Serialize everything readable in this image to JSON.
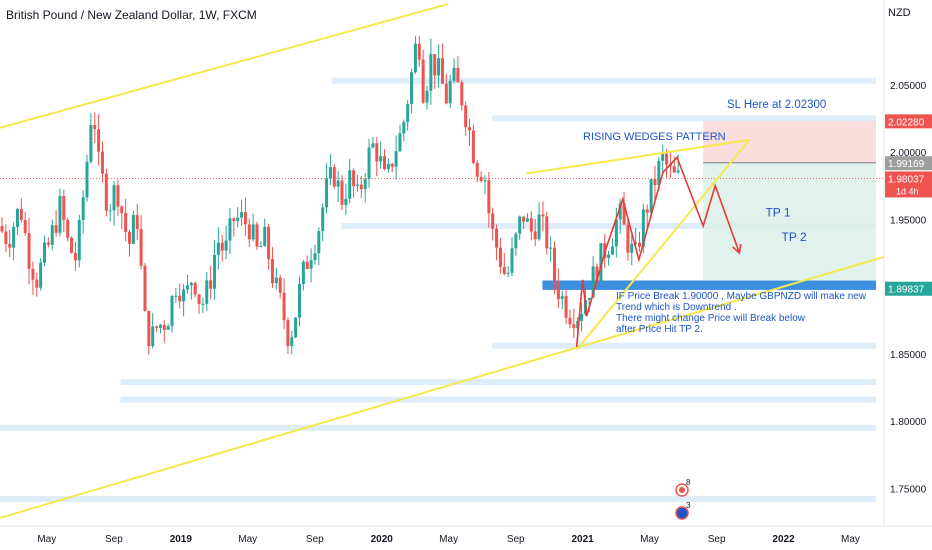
{
  "header": {
    "title": "British Pound / New Zealand Dollar, 1W, FXCM",
    "currency": "NZD"
  },
  "colors": {
    "up": "#26a69a",
    "down": "#ef5350",
    "trendline": "#f5e84c",
    "annotation_text": "#1e55c8",
    "arrow": "#e53935",
    "support_zone": "#3d8fe0",
    "level_band": "#d6e8f7",
    "sl_zone": "#f9d6d6",
    "tp_zone": "#d8efe6",
    "badge_green": "#26a69a",
    "badge_red": "#ef5350"
  },
  "annotations": {
    "sl_text": "SL Here at 2.02300",
    "pattern_text": "RISING WEDGES PATTERN",
    "tp1_text": "TP 1",
    "tp2_text": "TP 2",
    "note_lines": [
      "IF Price Break 1.90000 , Maybe GBPNZD will make new",
      "Trend which is Downtrend .",
      "There might change Price will Break below",
      "after Price Hit TP 2."
    ]
  },
  "price_labels": [
    {
      "text": "2.02280",
      "value": 2.0228,
      "color": "#ef5350"
    },
    {
      "text": "1.99169",
      "value": 1.99169,
      "color": "#9e9e9e"
    },
    {
      "text": "1.98037",
      "value": 1.98037,
      "color": "#ef5350",
      "sub": "1d 4h"
    },
    {
      "text": "1.89837",
      "value": 1.89837,
      "color": "#26a69a"
    }
  ],
  "events": [
    {
      "count": "8",
      "icon": "flag-event-icon"
    },
    {
      "count": "3",
      "icon": "flag-event-icon"
    }
  ],
  "chart_data": {
    "type": "candlestick",
    "title": "British Pound / New Zealand Dollar, 1W, FXCM",
    "y_ticks": [
      "2.05000",
      "2.00000",
      "1.95000",
      "1.90000",
      "1.85000",
      "1.80000",
      "1.75000"
    ],
    "y_tick_values": [
      2.05,
      2.0,
      1.95,
      1.9,
      1.85,
      1.8,
      1.75
    ],
    "ylim": [
      1.722,
      2.113
    ],
    "x_ticks": [
      {
        "label": "May",
        "bold": false,
        "t": 2018.333
      },
      {
        "label": "Sep",
        "bold": false,
        "t": 2018.667
      },
      {
        "label": "2019",
        "bold": true,
        "t": 2019.0
      },
      {
        "label": "May",
        "bold": false,
        "t": 2019.333
      },
      {
        "label": "Sep",
        "bold": false,
        "t": 2019.667
      },
      {
        "label": "2020",
        "bold": true,
        "t": 2020.0
      },
      {
        "label": "May",
        "bold": false,
        "t": 2020.333
      },
      {
        "label": "Sep",
        "bold": false,
        "t": 2020.667
      },
      {
        "label": "2021",
        "bold": true,
        "t": 2021.0
      },
      {
        "label": "May",
        "bold": false,
        "t": 2021.333
      },
      {
        "label": "Sep",
        "bold": false,
        "t": 2021.667
      },
      {
        "label": "2022",
        "bold": true,
        "t": 2022.0
      },
      {
        "label": "May",
        "bold": false,
        "t": 2022.333
      }
    ],
    "xlim": [
      2018.1,
      2022.5
    ],
    "price_path": [
      [
        2018.11,
        1.945
      ],
      [
        2018.16,
        1.935
      ],
      [
        2018.22,
        1.96
      ],
      [
        2018.26,
        1.925
      ],
      [
        2018.3,
        1.905
      ],
      [
        2018.36,
        1.93
      ],
      [
        2018.42,
        1.96
      ],
      [
        2018.46,
        1.93
      ],
      [
        2018.5,
        1.92
      ],
      [
        2018.55,
        1.99
      ],
      [
        2018.58,
        2.04
      ],
      [
        2018.61,
        1.99
      ],
      [
        2018.66,
        1.96
      ],
      [
        2018.7,
        1.975
      ],
      [
        2018.76,
        1.93
      ],
      [
        2018.8,
        1.955
      ],
      [
        2018.84,
        1.875
      ],
      [
        2018.87,
        1.86
      ],
      [
        2018.9,
        1.87
      ],
      [
        2018.95,
        1.875
      ],
      [
        2019.0,
        1.905
      ],
      [
        2019.04,
        1.89
      ],
      [
        2019.08,
        1.91
      ],
      [
        2019.12,
        1.885
      ],
      [
        2019.16,
        1.9
      ],
      [
        2019.2,
        1.935
      ],
      [
        2019.24,
        1.925
      ],
      [
        2019.28,
        1.95
      ],
      [
        2019.32,
        1.95
      ],
      [
        2019.36,
        1.945
      ],
      [
        2019.4,
        1.925
      ],
      [
        2019.44,
        1.935
      ],
      [
        2019.48,
        1.905
      ],
      [
        2019.52,
        1.885
      ],
      [
        2019.56,
        1.86
      ],
      [
        2019.59,
        1.88
      ],
      [
        2019.62,
        1.905
      ],
      [
        2019.66,
        1.925
      ],
      [
        2019.7,
        1.94
      ],
      [
        2019.74,
        1.97
      ],
      [
        2019.78,
        1.985
      ],
      [
        2019.82,
        1.965
      ],
      [
        2019.86,
        1.98
      ],
      [
        2019.9,
        1.965
      ],
      [
        2019.94,
        1.99
      ],
      [
        2019.97,
        2.005
      ],
      [
        2020.0,
        2.0
      ],
      [
        2020.04,
        1.975
      ],
      [
        2020.08,
        2.0
      ],
      [
        2020.12,
        2.015
      ],
      [
        2020.16,
        2.05
      ],
      [
        2020.2,
        2.09
      ],
      [
        2020.23,
        2.04
      ],
      [
        2020.26,
        2.07
      ],
      [
        2020.3,
        2.06
      ],
      [
        2020.34,
        2.04
      ],
      [
        2020.37,
        2.055
      ],
      [
        2020.41,
        2.045
      ],
      [
        2020.45,
        2.02
      ],
      [
        2020.49,
        1.99
      ],
      [
        2020.53,
        1.985
      ],
      [
        2020.56,
        1.945
      ],
      [
        2020.6,
        1.925
      ],
      [
        2020.64,
        1.905
      ],
      [
        2020.68,
        1.93
      ],
      [
        2020.72,
        1.955
      ],
      [
        2020.76,
        1.94
      ],
      [
        2020.8,
        1.95
      ],
      [
        2020.84,
        1.935
      ],
      [
        2020.88,
        1.905
      ],
      [
        2020.92,
        1.89
      ],
      [
        2020.96,
        1.88
      ],
      [
        2021.0,
        1.88
      ],
      [
        2021.04,
        1.895
      ],
      [
        2021.08,
        1.91
      ],
      [
        2021.12,
        1.925
      ],
      [
        2021.16,
        1.935
      ],
      [
        2021.2,
        1.955
      ],
      [
        2021.24,
        1.935
      ],
      [
        2021.28,
        1.92
      ],
      [
        2021.32,
        1.95
      ],
      [
        2021.36,
        1.97
      ],
      [
        2021.39,
        1.985
      ],
      [
        2021.42,
        1.995
      ],
      [
        2021.45,
        1.985
      ],
      [
        2021.48,
        1.98
      ]
    ],
    "trendlines": [
      {
        "name": "upper-channel-line",
        "from": [
          2018.1,
          2.018
        ],
        "to": [
          2020.33,
          2.11
        ]
      },
      {
        "name": "lower-channel-line",
        "from": [
          2018.1,
          1.728
        ],
        "to": [
          2022.5,
          1.922
        ]
      },
      {
        "name": "wedge-upper-line",
        "from": [
          2020.72,
          1.984
        ],
        "to": [
          2021.83,
          2.009
        ]
      },
      {
        "name": "wedge-lower-line",
        "from": [
          2020.97,
          1.853
        ],
        "to": [
          2021.83,
          2.009
        ]
      }
    ],
    "support_zone": [
      1.9045,
      1.8975
    ],
    "support_zone_x": [
      2020.8,
      2022.46
    ],
    "sl_zone": [
      2.023,
      1.992
    ],
    "tp_zone": [
      1.992,
      1.905
    ],
    "trade_zone_x": [
      2021.6,
      2022.46
    ],
    "level_bands": [
      {
        "value": 2.053,
        "x": [
          2019.75,
          2022.46
        ]
      },
      {
        "value": 2.025,
        "x": [
          2020.55,
          2022.46
        ]
      },
      {
        "value": 1.945,
        "x": [
          2019.8,
          2022.46
        ]
      },
      {
        "value": 1.856,
        "x": [
          2020.55,
          2022.46
        ]
      },
      {
        "value": 1.829,
        "x": [
          2018.7,
          2022.46
        ]
      },
      {
        "value": 1.816,
        "x": [
          2018.7,
          2022.46
        ]
      },
      {
        "value": 1.795,
        "x": [
          2018.1,
          2022.46
        ]
      },
      {
        "value": 1.742,
        "x": [
          2018.1,
          2022.46
        ]
      }
    ],
    "projection_zigzag": [
      [
        2020.97,
        1.855
      ],
      [
        2021.0,
        1.905
      ],
      [
        2021.02,
        1.878
      ],
      [
        2021.12,
        1.93
      ],
      [
        2021.2,
        1.965
      ],
      [
        2021.28,
        1.92
      ],
      [
        2021.4,
        1.985
      ],
      [
        2021.47,
        1.996
      ],
      [
        2021.6,
        1.945
      ],
      [
        2021.66,
        1.975
      ],
      [
        2021.78,
        1.925
      ]
    ],
    "tp_labels": [
      {
        "text": "TP 1",
        "t": 2021.91,
        "v": 1.952
      },
      {
        "text": "TP 2",
        "t": 2021.99,
        "v": 1.934
      }
    ]
  }
}
